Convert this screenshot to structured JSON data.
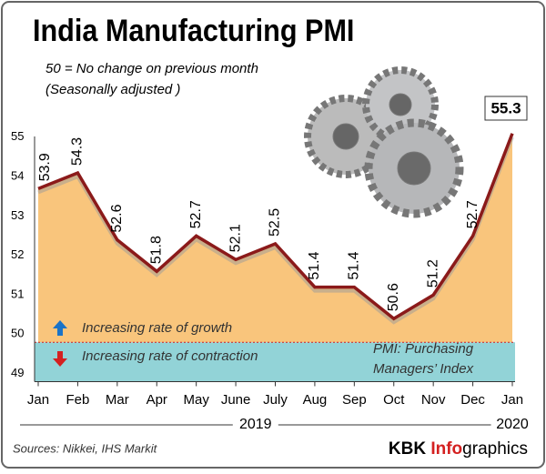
{
  "chart_data": {
    "type": "area-line",
    "title": "India Manufacturing PMI",
    "subtitle": [
      "50 = No change on previous month",
      "(Seasonally adjusted )"
    ],
    "categories": [
      "Jan",
      "Feb",
      "Mar",
      "Apr",
      "May",
      "June",
      "July",
      "Aug",
      "Sep",
      "Oct",
      "Nov",
      "Dec",
      "Jan"
    ],
    "x_groups": [
      {
        "label": "2019",
        "from": 0,
        "to": 11
      },
      {
        "label": "2020",
        "from": 12,
        "to": 12
      }
    ],
    "values": [
      53.9,
      54.3,
      52.6,
      51.8,
      52.7,
      52.1,
      52.5,
      51.4,
      51.4,
      50.6,
      51.2,
      52.7,
      55.3
    ],
    "color": "#8b1a1a",
    "fill_color": "#f9c57c",
    "baseline": 50,
    "below_color": "#92d3d7",
    "ylim": [
      49,
      56
    ],
    "yticks": [
      49,
      50,
      51,
      52,
      53,
      54,
      55
    ],
    "annotations": {
      "growth": "Increasing rate of growth",
      "contraction": "Increasing rate of contraction",
      "pmi": [
        "PMI: Purchasing",
        "Managers’ Index"
      ]
    },
    "source": "Sources: Nikkei, IHS Markit",
    "brand": [
      "KBK ",
      "Info",
      "graphics"
    ]
  }
}
